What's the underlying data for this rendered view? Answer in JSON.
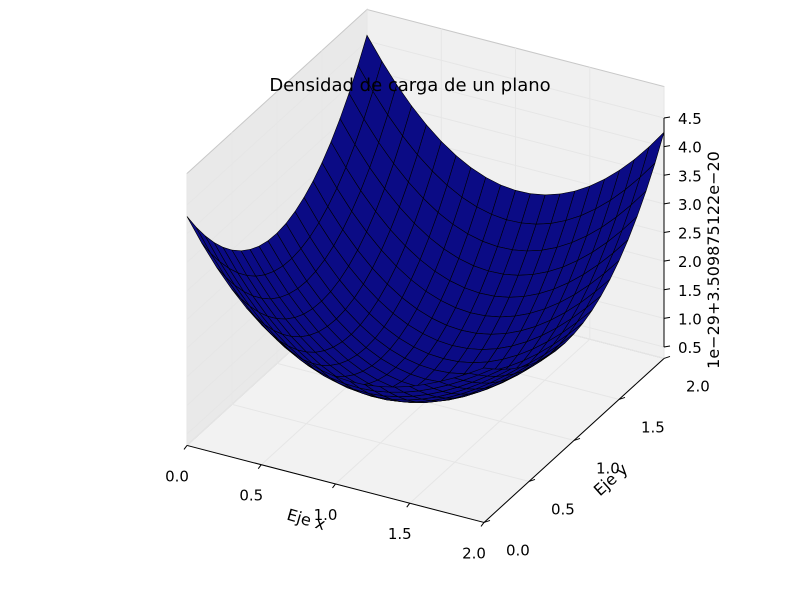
{
  "chart_data": {
    "type": "surface3d",
    "title": "Densidad de carga de un plano",
    "xlabel": "Eje x",
    "ylabel": "Eje y",
    "zlabel": "1e−29+3.509875122e−20",
    "x_ticks": [
      "0.0",
      "0.5",
      "1.0",
      "1.5",
      "2.0"
    ],
    "y_ticks": [
      "0.0",
      "0.5",
      "1.0",
      "1.5",
      "2.0"
    ],
    "z_ticks": [
      "0.5",
      "1.0",
      "1.5",
      "2.0",
      "2.5",
      "3.0",
      "3.5",
      "4.0",
      "4.5"
    ],
    "xlim": [
      0,
      2
    ],
    "ylim": [
      0,
      2
    ],
    "zlim": [
      0.5,
      4.5
    ],
    "surface": {
      "grid_x": [
        0,
        0.1,
        0.2,
        0.3,
        0.4,
        0.5,
        0.6,
        0.7,
        0.8,
        0.9,
        1.0,
        1.1,
        1.2,
        1.3,
        1.4,
        1.5,
        1.6,
        1.7,
        1.8,
        1.9,
        2.0
      ],
      "grid_y": [
        0,
        0.1,
        0.2,
        0.3,
        0.4,
        0.5,
        0.6,
        0.7,
        0.8,
        0.9,
        1.0,
        1.1,
        1.2,
        1.3,
        1.4,
        1.5,
        1.6,
        1.7,
        1.8,
        1.9,
        2.0
      ],
      "corner_z": {
        "x0_y0": 4.3,
        "x2_y0": 3.0,
        "x0_y2": 4.6,
        "x2_y2": 4.25
      },
      "min_z": 0.7,
      "min_at": [
        1.0,
        1.0
      ]
    },
    "grid": true,
    "colors": {
      "face": "#0b0b85",
      "edge": "#000000",
      "pane": "#f2f2f2",
      "pane_edge": "#c8c8c8",
      "grid": "#e6e6e6"
    }
  }
}
